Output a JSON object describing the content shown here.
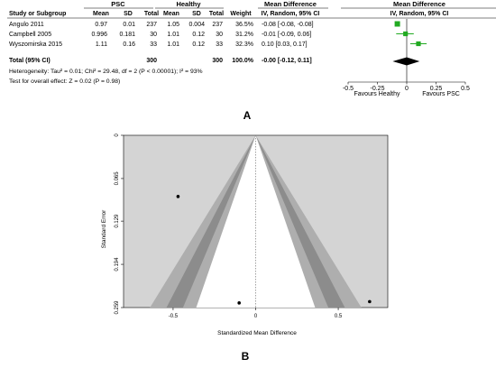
{
  "panel_a_label": "A",
  "panel_b_label": "B",
  "chart_data": [
    {
      "type": "table",
      "headers": {
        "study": "Study or Subgroup",
        "psc_group": "PSC",
        "healthy_group": "Healthy",
        "md_group": "Mean Difference",
        "md_method": "IV, Random, 95% CI",
        "md_plot_group": "Mean Difference",
        "md_plot_method": "IV, Random, 95% CI",
        "mean": "Mean",
        "sd": "SD",
        "total": "Total",
        "weight": "Weight"
      },
      "rows": [
        {
          "study": "Angulo 2011",
          "psc_mean": "0.97",
          "psc_sd": "0.01",
          "psc_total": "237",
          "healthy_mean": "1.05",
          "healthy_sd": "0.004",
          "healthy_total": "237",
          "weight": "36.5%",
          "ci_text": "-0.08 [-0.08, -0.08]",
          "md": -0.08,
          "lo": -0.08,
          "hi": -0.08
        },
        {
          "study": "Campbell 2005",
          "psc_mean": "0.996",
          "psc_sd": "0.181",
          "psc_total": "30",
          "healthy_mean": "1.01",
          "healthy_sd": "0.12",
          "healthy_total": "30",
          "weight": "31.2%",
          "ci_text": "-0.01 [-0.09, 0.06]",
          "md": -0.01,
          "lo": -0.09,
          "hi": 0.06
        },
        {
          "study": "Wyszomirska 2015",
          "psc_mean": "1.11",
          "psc_sd": "0.16",
          "psc_total": "33",
          "healthy_mean": "1.01",
          "healthy_sd": "0.12",
          "healthy_total": "33",
          "weight": "32.3%",
          "ci_text": "0.10 [0.03, 0.17]",
          "md": 0.1,
          "lo": 0.03,
          "hi": 0.17
        }
      ],
      "total_row": {
        "label": "Total (95% CI)",
        "psc_total": "300",
        "healthy_total": "300",
        "weight": "100.0%",
        "ci_text": "-0.00 [-0.12, 0.11]",
        "md": 0.0,
        "lo": -0.12,
        "hi": 0.11
      },
      "heterogeneity": "Heterogeneity: Tau² = 0.01; Chi² = 29.48, df = 2 (P < 0.00001); I² = 93%",
      "overall_effect": "Test for overall effect: Z = 0.02 (P = 0.98)",
      "axis": {
        "min": -0.5,
        "max": 0.5,
        "ticks": [
          "-0.5",
          "-0.25",
          "0",
          "0.25",
          "0.5"
        ],
        "favours_left": "Favours Healthy",
        "favours_right": "Favours PSC"
      },
      "marker_color": "#22aa22"
    },
    {
      "type": "scatter",
      "xlabel": "Standardized Mean Difference",
      "ylabel": "Standard Error",
      "xlim": [
        -0.8,
        0.8
      ],
      "ylim": [
        0,
        0.259
      ],
      "y_inverted": true,
      "x_ticks": [
        "-0.5",
        "0",
        "0.5"
      ],
      "y_ticks": [
        "0",
        "0.065",
        "0.129",
        "0.194",
        "0.259"
      ],
      "points": [
        {
          "x": -0.47,
          "y": 0.092
        },
        {
          "x": -0.1,
          "y": 0.252
        },
        {
          "x": 0.69,
          "y": 0.25
        }
      ],
      "funnel": {
        "center": 0.0,
        "colors": {
          "background": "#d4d4d4",
          "outer": "#aeaeae",
          "inner": "#8c8c8c",
          "core": "#ffffff"
        }
      }
    }
  ]
}
